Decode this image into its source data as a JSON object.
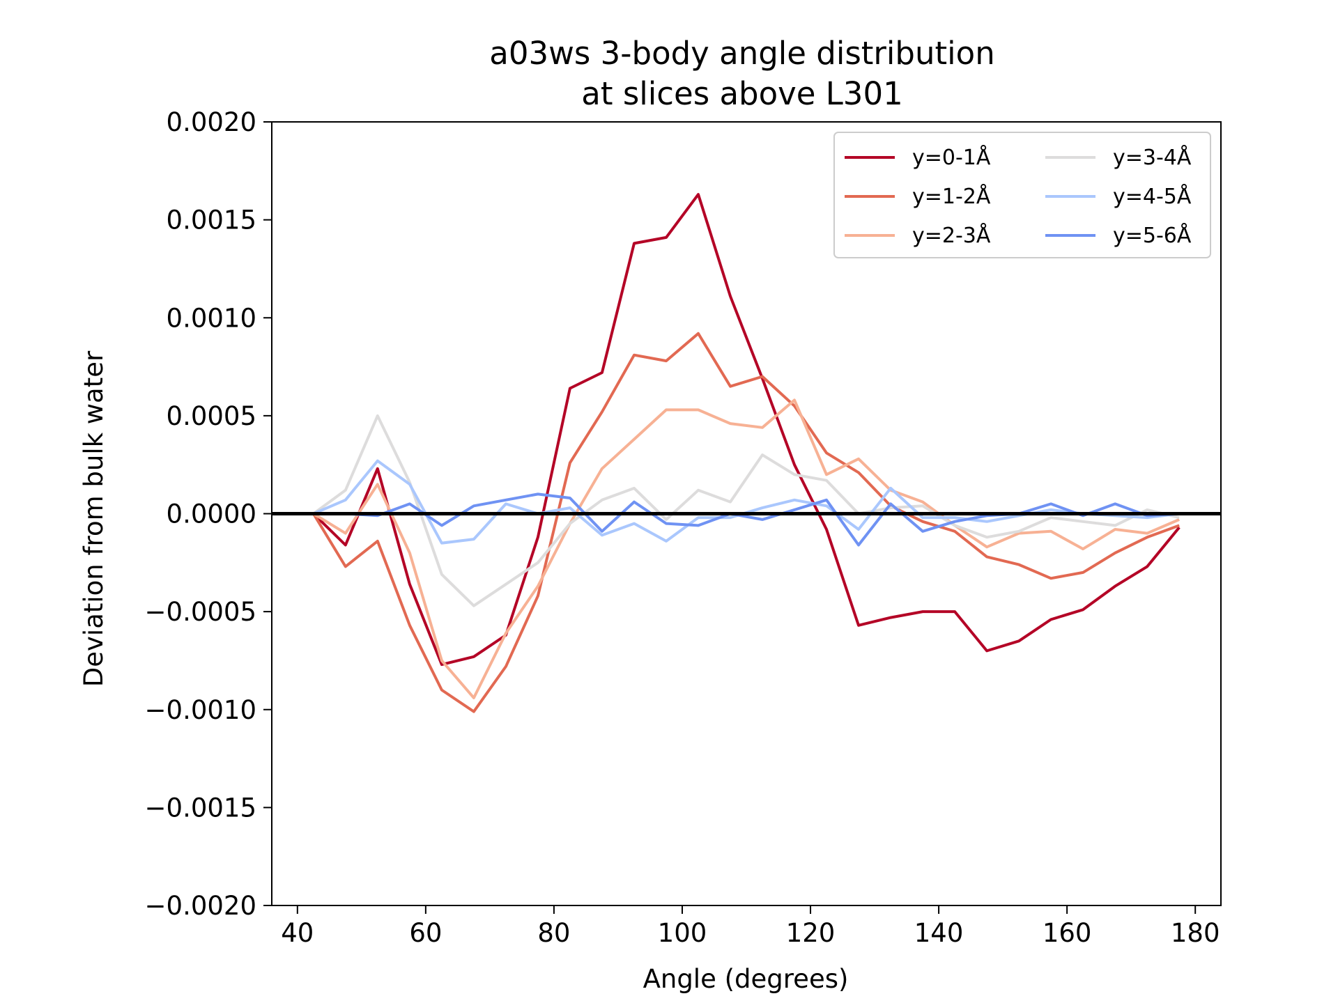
{
  "chart_data": {
    "type": "line",
    "title": [
      "a03ws 3-body angle distribution",
      "at slices above L301"
    ],
    "xlabel": "Angle (degrees)",
    "ylabel": "Deviation from bulk water",
    "xlim": [
      36,
      184
    ],
    "ylim": [
      -0.002,
      0.002
    ],
    "xticks": [
      40,
      60,
      80,
      100,
      120,
      140,
      160,
      180
    ],
    "yticks": [
      0.002,
      0.0015,
      0.001,
      0.0005,
      0.0,
      -0.0005,
      -0.001,
      -0.0015,
      -0.002
    ],
    "ytick_labels": [
      "0.0020",
      "0.0015",
      "0.0010",
      "0.0005",
      "0.0000",
      "−0.0005",
      "−0.0010",
      "−0.0015",
      "−0.0020"
    ],
    "legend_location": "upper-right",
    "legend_columns": 2,
    "grid": false,
    "reference_line": {
      "y": 0.0,
      "color": "#000000"
    },
    "x": [
      42.5,
      47.5,
      52.5,
      57.5,
      62.5,
      67.5,
      72.5,
      77.5,
      82.5,
      87.5,
      92.5,
      97.5,
      102.5,
      107.5,
      112.5,
      117.5,
      122.5,
      127.5,
      132.5,
      137.5,
      142.5,
      147.5,
      152.5,
      157.5,
      162.5,
      167.5,
      172.5,
      177.5
    ],
    "series": [
      {
        "name": "y=0-1Å",
        "color": "#b40426",
        "values": [
          0.0,
          -0.00016,
          0.00023,
          -0.00036,
          -0.00077,
          -0.00073,
          -0.00062,
          -0.00012,
          0.00064,
          0.00072,
          0.00138,
          0.00141,
          0.00163,
          0.00111,
          0.00069,
          0.00025,
          -8e-05,
          -0.00057,
          -0.00053,
          -0.0005,
          -0.0005,
          -0.0007,
          -0.00065,
          -0.00054,
          -0.00049,
          -0.00037,
          -0.00027,
          -7e-05
        ]
      },
      {
        "name": "y=1-2Å",
        "color": "#e26952",
        "values": [
          0.0,
          -0.00027,
          -0.00014,
          -0.00057,
          -0.0009,
          -0.00101,
          -0.00078,
          -0.00042,
          0.00026,
          0.00052,
          0.00081,
          0.00078,
          0.00092,
          0.00065,
          0.0007,
          0.00055,
          0.00031,
          0.00021,
          4e-05,
          -4e-05,
          -9e-05,
          -0.00022,
          -0.00026,
          -0.00033,
          -0.0003,
          -0.0002,
          -0.00012,
          -6e-05
        ]
      },
      {
        "name": "y=2-3Å",
        "color": "#f7b194",
        "values": [
          0.0,
          -0.0001,
          0.00015,
          -0.0002,
          -0.00075,
          -0.00094,
          -0.00061,
          -0.00037,
          -5e-05,
          0.00023,
          0.00038,
          0.00053,
          0.00053,
          0.00046,
          0.00044,
          0.00058,
          0.0002,
          0.00028,
          0.00012,
          6e-05,
          -6e-05,
          -0.00017,
          -0.0001,
          -9e-05,
          -0.00018,
          -8e-05,
          -0.0001,
          -3e-05
        ]
      },
      {
        "name": "y=3-4Å",
        "color": "#dddcdc",
        "values": [
          0.0,
          0.00012,
          0.0005,
          0.00016,
          -0.00031,
          -0.00047,
          -0.00036,
          -0.00025,
          -5e-05,
          7e-05,
          0.00013,
          -3e-05,
          0.00012,
          6e-05,
          0.0003,
          0.0002,
          0.00017,
          0.0,
          3e-05,
          4e-05,
          -6e-05,
          -0.00012,
          -9e-05,
          -2e-05,
          -4e-05,
          -6e-05,
          2e-05,
          -2e-05
        ]
      },
      {
        "name": "y=4-5Å",
        "color": "#aac7fd",
        "values": [
          0.0,
          7e-05,
          0.00027,
          0.00015,
          -0.00015,
          -0.00013,
          5e-05,
          0.0,
          3e-05,
          -0.00011,
          -5e-05,
          -0.00014,
          -2e-05,
          -2e-05,
          3e-05,
          7e-05,
          4e-05,
          -8e-05,
          0.00013,
          -2e-05,
          -2e-05,
          -4e-05,
          -1e-05,
          2e-05,
          0.0,
          -1e-05,
          -2e-05,
          0.0
        ]
      },
      {
        "name": "y=5-6Å",
        "color": "#6f92f3",
        "values": [
          0.0,
          0.0,
          -1e-05,
          5e-05,
          -6e-05,
          4e-05,
          7e-05,
          0.0001,
          8e-05,
          -9e-05,
          6e-05,
          -5e-05,
          -6e-05,
          0.0,
          -3e-05,
          2e-05,
          7e-05,
          -0.00016,
          5e-05,
          -9e-05,
          -4e-05,
          -1e-05,
          0.0,
          5e-05,
          -1e-05,
          5e-05,
          -1e-05,
          0.0
        ]
      }
    ]
  }
}
